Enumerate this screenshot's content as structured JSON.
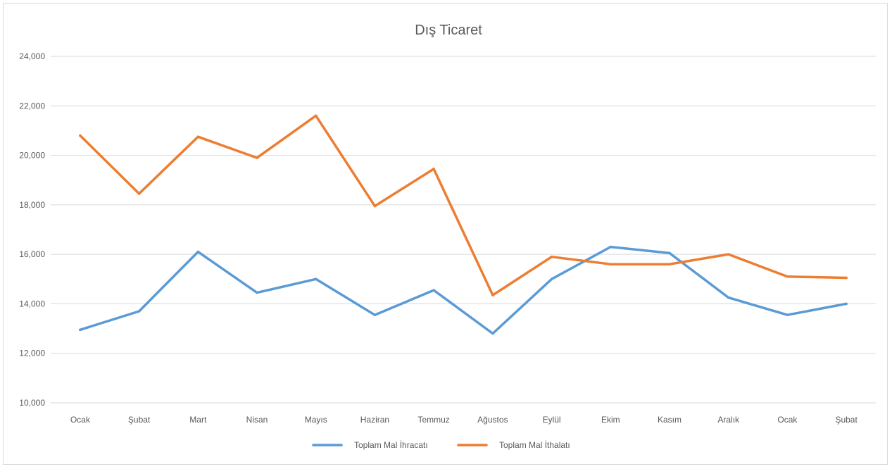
{
  "chart_data": {
    "type": "line",
    "title": "Dış Ticaret",
    "categories": [
      "Ocak",
      "Şubat",
      "Mart",
      "Nisan",
      "Mayıs",
      "Haziran",
      "Temmuz",
      "Ağustos",
      "Eylül",
      "Ekim",
      "Kasım",
      "Aralık",
      "Ocak",
      "Şubat"
    ],
    "series": [
      {
        "name": "Toplam Mal İhracatı",
        "color": "#5b9bd5",
        "values": [
          12950,
          13700,
          16100,
          14450,
          15000,
          13550,
          14550,
          12800,
          15000,
          16300,
          16050,
          14250,
          13550,
          14000
        ]
      },
      {
        "name": "Toplam Mal İthalatı",
        "color": "#ed7d31",
        "values": [
          20800,
          18450,
          20750,
          19900,
          21600,
          17950,
          19450,
          14350,
          15900,
          15600,
          15600,
          16000,
          15100,
          15050
        ]
      }
    ],
    "yticks": [
      "10,000",
      "12,000",
      "14,000",
      "16,000",
      "18,000",
      "20,000",
      "22,000",
      "24,000"
    ],
    "ylim": [
      10000,
      24000
    ],
    "grid": true,
    "legend_position": "bottom",
    "xlabel": "",
    "ylabel": ""
  }
}
